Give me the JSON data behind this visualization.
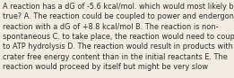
{
  "lines": [
    "A reaction has a dG of -5.6 kcal/mol. which would most likely be",
    "true? A. The reaction could be coupled to power and endergonic",
    "reaction with a dG of +8.8 kcal/mol B. The reaction is non-",
    "spontaneous C. to take place, the reaction would need to couple",
    "to ATP hydrolysis D. The reaction would result in products with a",
    "crater free energy content than in the initial reactants E. The",
    "reaction would proceed by itself but might be very slow"
  ],
  "bg_color": "#f2ede3",
  "text_color": "#2b2b2b",
  "fontsize": 5.85,
  "fig_width": 2.61,
  "fig_height": 0.88,
  "dpi": 100
}
